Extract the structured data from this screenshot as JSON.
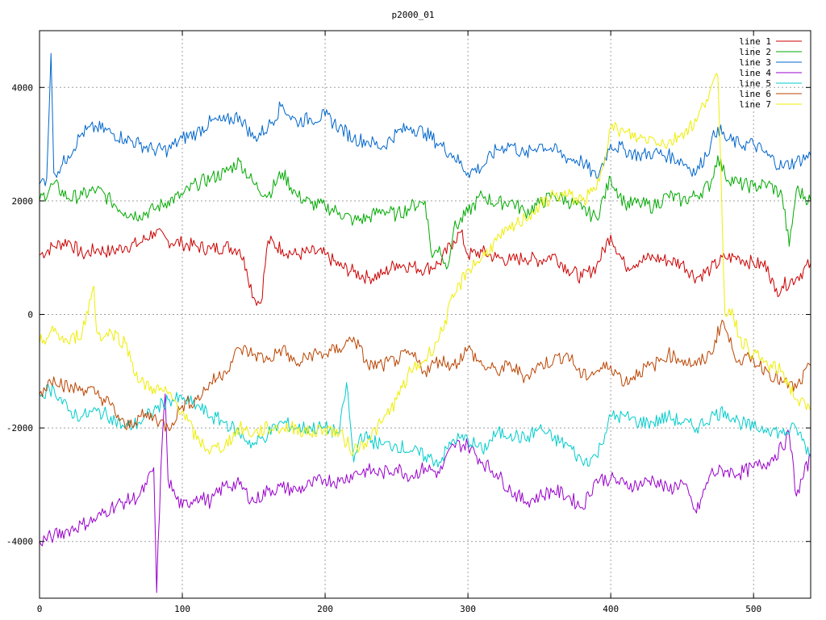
{
  "chart_data": {
    "type": "line",
    "title": "p2000_01",
    "xlabel": "",
    "ylabel": "",
    "xlim": [
      0,
      540
    ],
    "ylim": [
      -5000,
      5000
    ],
    "xticks": [
      0,
      100,
      200,
      300,
      400,
      500
    ],
    "xtick_labels": [
      "0",
      "100",
      "200",
      "300",
      "400",
      "500"
    ],
    "yticks": [
      -4000,
      -2000,
      0,
      2000,
      4000
    ],
    "ytick_labels": [
      "-4000",
      "-2000",
      "0",
      "2000",
      "4000"
    ],
    "grid": true,
    "legend": "top-right",
    "series": [
      {
        "name": "line 1",
        "color": "#cc0000",
        "x": [
          0,
          10,
          20,
          30,
          40,
          50,
          60,
          70,
          80,
          90,
          100,
          110,
          120,
          130,
          140,
          145,
          150,
          155,
          160,
          170,
          180,
          190,
          200,
          210,
          220,
          230,
          240,
          250,
          260,
          270,
          280,
          290,
          295,
          300,
          310,
          320,
          330,
          340,
          350,
          360,
          370,
          380,
          390,
          400,
          410,
          420,
          430,
          440,
          450,
          460,
          470,
          480,
          490,
          500,
          510,
          515,
          520,
          530,
          540
        ],
        "y": [
          1050,
          1200,
          1300,
          1050,
          1150,
          1100,
          1200,
          1250,
          1450,
          1300,
          1250,
          1200,
          1150,
          1200,
          1150,
          800,
          300,
          200,
          1300,
          1150,
          1050,
          1100,
          1050,
          850,
          750,
          650,
          700,
          900,
          850,
          800,
          900,
          1300,
          1450,
          1050,
          1100,
          1000,
          950,
          1000,
          950,
          1050,
          800,
          650,
          850,
          1400,
          850,
          950,
          1000,
          950,
          900,
          650,
          800,
          1000,
          1000,
          900,
          850,
          400,
          500,
          650,
          900
        ]
      },
      {
        "name": "line 2",
        "color": "#00aa00",
        "x": [
          0,
          10,
          20,
          30,
          40,
          50,
          60,
          70,
          80,
          90,
          100,
          110,
          120,
          130,
          140,
          150,
          160,
          170,
          180,
          190,
          200,
          210,
          220,
          230,
          240,
          250,
          260,
          270,
          275,
          280,
          285,
          290,
          300,
          310,
          320,
          330,
          340,
          350,
          360,
          370,
          380,
          390,
          400,
          410,
          420,
          430,
          440,
          450,
          460,
          470,
          475,
          480,
          490,
          500,
          510,
          520,
          525,
          530,
          540
        ],
        "y": [
          2000,
          2300,
          2050,
          2100,
          2200,
          2000,
          1800,
          1750,
          1850,
          2000,
          2100,
          2300,
          2400,
          2500,
          2700,
          2300,
          2100,
          2500,
          2100,
          1950,
          1900,
          1800,
          1650,
          1700,
          1850,
          1750,
          1900,
          2000,
          1000,
          1200,
          800,
          1500,
          1800,
          2100,
          1950,
          2000,
          1800,
          1950,
          2100,
          2000,
          1850,
          1700,
          2400,
          1950,
          1950,
          1900,
          2100,
          2000,
          2100,
          2300,
          2800,
          2450,
          2300,
          2250,
          2300,
          2100,
          1200,
          2200,
          2000
        ]
      },
      {
        "name": "line 3",
        "color": "#0066cc",
        "x": [
          0,
          5,
          8,
          10,
          15,
          20,
          30,
          40,
          50,
          60,
          70,
          80,
          90,
          100,
          110,
          120,
          130,
          140,
          150,
          160,
          170,
          175,
          180,
          190,
          200,
          210,
          220,
          230,
          240,
          250,
          260,
          270,
          280,
          290,
          300,
          310,
          320,
          330,
          340,
          350,
          360,
          370,
          380,
          390,
          400,
          410,
          420,
          430,
          440,
          450,
          460,
          470,
          475,
          480,
          490,
          500,
          510,
          520,
          530,
          540
        ],
        "y": [
          2300,
          2400,
          4600,
          2500,
          2600,
          2800,
          3200,
          3300,
          3200,
          3100,
          3000,
          2900,
          2900,
          3100,
          3200,
          3400,
          3400,
          3500,
          3100,
          3300,
          3700,
          3500,
          3400,
          3450,
          3500,
          3300,
          3100,
          3050,
          2950,
          3200,
          3300,
          3200,
          3000,
          2800,
          2500,
          2600,
          2900,
          3000,
          2800,
          3000,
          2900,
          2750,
          2700,
          2400,
          3000,
          2900,
          2800,
          2850,
          2800,
          2700,
          2500,
          3000,
          3300,
          3100,
          3000,
          3000,
          2800,
          2600,
          2700,
          2800
        ]
      },
      {
        "name": "line 4",
        "color": "#9900cc",
        "x": [
          0,
          10,
          20,
          30,
          40,
          50,
          60,
          70,
          75,
          80,
          82,
          85,
          88,
          90,
          95,
          100,
          110,
          120,
          130,
          140,
          150,
          160,
          170,
          180,
          190,
          200,
          210,
          220,
          230,
          240,
          250,
          260,
          270,
          280,
          290,
          300,
          310,
          320,
          330,
          340,
          350,
          360,
          370,
          380,
          390,
          400,
          410,
          420,
          430,
          440,
          450,
          460,
          470,
          480,
          490,
          500,
          510,
          520,
          525,
          530,
          540
        ],
        "y": [
          -4000,
          -3900,
          -3800,
          -3700,
          -3600,
          -3400,
          -3300,
          -3200,
          -3000,
          -2700,
          -4900,
          -2700,
          -1400,
          -2900,
          -3200,
          -3400,
          -3200,
          -3300,
          -3000,
          -3000,
          -3300,
          -3100,
          -3050,
          -3100,
          -3000,
          -2900,
          -2950,
          -2800,
          -2750,
          -2800,
          -2700,
          -2850,
          -2700,
          -2800,
          -2300,
          -2300,
          -2600,
          -2800,
          -3100,
          -3300,
          -3200,
          -3100,
          -3200,
          -3400,
          -2900,
          -2900,
          -3000,
          -3000,
          -2900,
          -3100,
          -2950,
          -3500,
          -2800,
          -2750,
          -2800,
          -2700,
          -2600,
          -2350,
          -2100,
          -3200,
          -2500
        ]
      },
      {
        "name": "line 5",
        "color": "#00cccc",
        "x": [
          0,
          10,
          20,
          30,
          40,
          50,
          60,
          70,
          80,
          90,
          100,
          110,
          120,
          130,
          140,
          150,
          160,
          170,
          180,
          190,
          200,
          210,
          215,
          220,
          225,
          230,
          240,
          250,
          260,
          270,
          280,
          290,
          300,
          310,
          320,
          330,
          340,
          350,
          360,
          370,
          380,
          390,
          400,
          410,
          420,
          430,
          440,
          450,
          460,
          470,
          480,
          490,
          500,
          510,
          520,
          530,
          540
        ],
        "y": [
          -1400,
          -1300,
          -1700,
          -1800,
          -1700,
          -1800,
          -2000,
          -1900,
          -1700,
          -1500,
          -1500,
          -1600,
          -1800,
          -1900,
          -2100,
          -2300,
          -2100,
          -1900,
          -2000,
          -2000,
          -2000,
          -2100,
          -1200,
          -2600,
          -2100,
          -2200,
          -2300,
          -2300,
          -2400,
          -2500,
          -2600,
          -2200,
          -2200,
          -2400,
          -2100,
          -2100,
          -2200,
          -2000,
          -2200,
          -2300,
          -2600,
          -2500,
          -1800,
          -1800,
          -1900,
          -1900,
          -1800,
          -1900,
          -2000,
          -1800,
          -1700,
          -1900,
          -2000,
          -2000,
          -2100,
          -2000,
          -2500
        ]
      },
      {
        "name": "line 6",
        "color": "#bb4400",
        "x": [
          0,
          10,
          20,
          30,
          40,
          50,
          60,
          70,
          80,
          90,
          100,
          110,
          120,
          130,
          140,
          150,
          160,
          170,
          180,
          190,
          200,
          210,
          220,
          230,
          240,
          250,
          260,
          270,
          280,
          290,
          300,
          310,
          320,
          330,
          340,
          350,
          360,
          370,
          380,
          390,
          400,
          410,
          420,
          430,
          440,
          450,
          460,
          470,
          478,
          485,
          490,
          500,
          510,
          520,
          530,
          540
        ],
        "y": [
          -1400,
          -1100,
          -1300,
          -1300,
          -1400,
          -1600,
          -2000,
          -1800,
          -1800,
          -2000,
          -1600,
          -1500,
          -1200,
          -1000,
          -600,
          -700,
          -800,
          -600,
          -900,
          -700,
          -700,
          -600,
          -400,
          -900,
          -900,
          -800,
          -700,
          -1000,
          -800,
          -900,
          -600,
          -900,
          -1000,
          -900,
          -1100,
          -900,
          -800,
          -700,
          -1100,
          -1000,
          -900,
          -1200,
          -1000,
          -900,
          -700,
          -800,
          -900,
          -700,
          -100,
          -600,
          -800,
          -800,
          -1000,
          -1200,
          -1300,
          -900
        ]
      },
      {
        "name": "line 7",
        "color": "#eeee00",
        "x": [
          0,
          10,
          20,
          30,
          38,
          40,
          45,
          50,
          60,
          70,
          80,
          90,
          100,
          110,
          120,
          130,
          140,
          150,
          160,
          170,
          180,
          190,
          200,
          210,
          220,
          230,
          240,
          250,
          260,
          270,
          280,
          290,
          300,
          310,
          320,
          330,
          340,
          350,
          360,
          370,
          380,
          390,
          400,
          410,
          420,
          430,
          440,
          450,
          460,
          470,
          475,
          480,
          485,
          490,
          500,
          510,
          520,
          530,
          540
        ],
        "y": [
          -500,
          -300,
          -500,
          -300,
          500,
          -300,
          -400,
          -300,
          -500,
          -1200,
          -1300,
          -1400,
          -1700,
          -2200,
          -2400,
          -2300,
          -2000,
          -2100,
          -2000,
          -2000,
          -2000,
          -2100,
          -2000,
          -2100,
          -2400,
          -2200,
          -1900,
          -1500,
          -1000,
          -800,
          -400,
          300,
          800,
          1000,
          1300,
          1500,
          1700,
          1900,
          2100,
          2100,
          2000,
          2200,
          3300,
          3200,
          3100,
          3100,
          3000,
          3200,
          3400,
          4000,
          4200,
          0,
          100,
          -400,
          -700,
          -900,
          -1000,
          -1500,
          -1700
        ]
      }
    ]
  }
}
